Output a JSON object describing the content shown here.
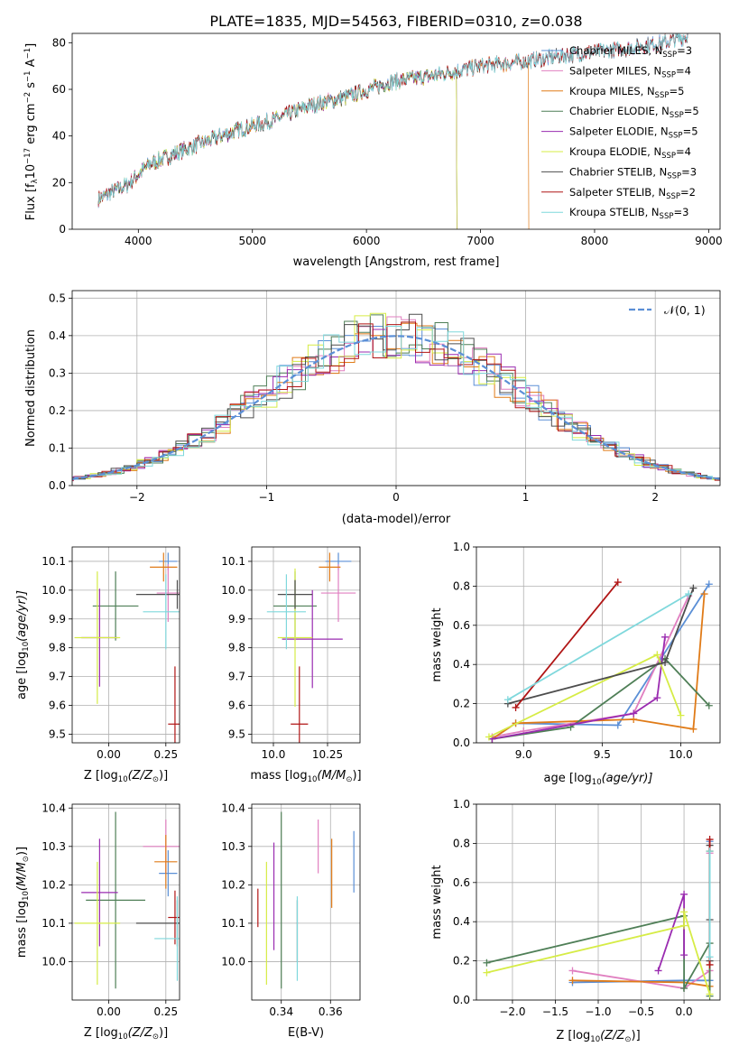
{
  "title": "PLATE=1835, MJD=54563, FIBERID=0310, z=0.038",
  "colors": {
    "chabrier_miles": "#5b8fd6",
    "salpeter_miles": "#e07fc0",
    "kroupa_miles": "#e07b18",
    "chabrier_elodie": "#4f7f57",
    "salpeter_elodie": "#9a2bb0",
    "kroupa_elodie": "#d6ec46",
    "chabrier_stelib": "#4d4d4d",
    "salpeter_stelib": "#b01515",
    "kroupa_stelib": "#7fd8dc",
    "normal_curve": "#5b8fd6",
    "grid": "#b0b0b0"
  },
  "chart_data": [
    {
      "id": "spectrum",
      "type": "line",
      "xlabel": "wavelength [Angstrom, rest frame]",
      "ylabel": "Flux [f",
      "ylabel_sub": "λ",
      "ylabel_rest": "10",
      "ylabel_exp1": "−17",
      "ylabel_mid": " erg cm",
      "ylabel_exp2": "−2",
      "ylabel_mid2": " s",
      "ylabel_exp3": "−1",
      "ylabel_mid3": " A",
      "ylabel_exp4": "−1",
      "ylabel_end": "]",
      "xlim": [
        3420,
        9100
      ],
      "ylim": [
        0,
        84
      ],
      "x_ticks": [
        4000,
        5000,
        6000,
        7000,
        8000,
        9000
      ],
      "y_ticks": [
        0,
        20,
        40,
        60,
        80
      ],
      "grid": false,
      "legend_position": "right",
      "x_range_data": [
        3650,
        8820
      ],
      "continuum": [
        [
          3650,
          13
        ],
        [
          3900,
          19
        ],
        [
          4100,
          28
        ],
        [
          4500,
          36
        ],
        [
          4900,
          43
        ],
        [
          5200,
          47
        ],
        [
          5500,
          53
        ],
        [
          5850,
          57
        ],
        [
          6200,
          63
        ],
        [
          6600,
          66
        ],
        [
          7000,
          70
        ],
        [
          7400,
          72
        ],
        [
          7800,
          75
        ],
        [
          8200,
          77
        ],
        [
          8600,
          80
        ],
        [
          8820,
          83
        ]
      ],
      "series": [
        {
          "name": "Chabrier MILES, N",
          "sub": "SSP",
          "suffix": "=3",
          "color_key": "chabrier_miles",
          "drop_at": null
        },
        {
          "name": "Salpeter MILES, N",
          "sub": "SSP",
          "suffix": "=4",
          "color_key": "salpeter_miles",
          "drop_at": null
        },
        {
          "name": "Kroupa MILES, N",
          "sub": "SSP",
          "suffix": "=5",
          "color_key": "kroupa_miles",
          "drop_at": 7420
        },
        {
          "name": "Chabrier ELODIE, N",
          "sub": "SSP",
          "suffix": "=5",
          "color_key": "chabrier_elodie",
          "drop_at": 6790
        },
        {
          "name": "Salpeter ELODIE, N",
          "sub": "SSP",
          "suffix": "=5",
          "color_key": "salpeter_elodie",
          "drop_at": 6790
        },
        {
          "name": "Kroupa ELODIE, N",
          "sub": "SSP",
          "suffix": "=4",
          "color_key": "kroupa_elodie",
          "drop_at": 6790
        },
        {
          "name": "Chabrier STELIB, N",
          "sub": "SSP",
          "suffix": "=3",
          "color_key": "chabrier_stelib",
          "drop_at": null
        },
        {
          "name": "Salpeter STELIB, N",
          "sub": "SSP",
          "suffix": "=2",
          "color_key": "salpeter_stelib",
          "drop_at": null
        },
        {
          "name": "Kroupa STELIB, N",
          "sub": "SSP",
          "suffix": "=3",
          "color_key": "kroupa_stelib",
          "drop_at": null
        }
      ]
    },
    {
      "id": "residuals",
      "type": "line",
      "xlabel": "(data-model)/error",
      "ylabel": "Normed distribution",
      "xlim": [
        -2.5,
        2.5
      ],
      "ylim": [
        0,
        0.52
      ],
      "x_ticks": [
        -2,
        -1,
        0,
        1,
        2
      ],
      "x_tick_labels": [
        "−2",
        "−1",
        "0",
        "1",
        "2"
      ],
      "y_ticks": [
        0.0,
        0.1,
        0.2,
        0.3,
        0.4,
        0.5
      ],
      "y_tick_labels": [
        "0.0",
        "0.1",
        "0.2",
        "0.3",
        "0.4",
        "0.5"
      ],
      "grid": true,
      "legend_position": "top-right",
      "normal_label": "𝒩(0, 1)",
      "normal": {
        "mean": 0,
        "sigma": 1
      }
    },
    {
      "id": "age_vs_Z",
      "type": "scatter",
      "xlabel": "Z [log",
      "xlabel_sub": "10",
      "xlabel_rest": "(Z/Z",
      "xlabel_sun": "⊙",
      "xlabel_end": ")]",
      "ylabel": "age  [log",
      "ylabel_sub": "10",
      "ylabel_rest": "(age/yr)]",
      "xlim": [
        -0.16,
        0.31
      ],
      "ylim": [
        9.47,
        10.15
      ],
      "x_ticks": [
        0.0,
        0.25
      ],
      "x_tick_labels": [
        "0.00",
        "0.25"
      ],
      "y_ticks": [
        9.5,
        9.6,
        9.7,
        9.8,
        9.9,
        10.0,
        10.1
      ],
      "y_tick_labels": [
        "9.5",
        "9.6",
        "9.7",
        "9.8",
        "9.9",
        "10.0",
        "10.1"
      ],
      "grid": true,
      "points": [
        {
          "color_key": "chabrier_miles",
          "x": 0.26,
          "xerr": 0.04,
          "y": 10.1,
          "yerr": 0.03
        },
        {
          "color_key": "salpeter_miles",
          "x": 0.26,
          "xerr": 0.05,
          "y": 9.99,
          "yerr": 0.1
        },
        {
          "color_key": "kroupa_miles",
          "x": 0.24,
          "xerr": 0.06,
          "y": 10.08,
          "yerr": 0.05
        },
        {
          "color_key": "chabrier_elodie",
          "x": 0.03,
          "xerr": 0.1,
          "y": 9.945,
          "yerr": 0.12
        },
        {
          "color_key": "salpeter_elodie",
          "x": -0.04,
          "xerr": 0.08,
          "y": 9.835,
          "yerr": 0.17
        },
        {
          "color_key": "kroupa_elodie",
          "x": -0.05,
          "xerr": 0.1,
          "y": 9.835,
          "yerr": 0.23
        },
        {
          "color_key": "chabrier_stelib",
          "x": 0.3,
          "xerr": 0.18,
          "y": 9.985,
          "yerr": 0.05
        },
        {
          "color_key": "salpeter_stelib",
          "x": 0.29,
          "xerr": 0.03,
          "y": 9.535,
          "yerr": 0.2
        },
        {
          "color_key": "kroupa_stelib",
          "x": 0.25,
          "xerr": 0.1,
          "y": 9.925,
          "yerr": 0.13
        }
      ]
    },
    {
      "id": "age_vs_mass",
      "type": "scatter",
      "xlabel": "mass [log",
      "xlabel_sub": "10",
      "xlabel_rest": "(M/M",
      "xlabel_sun": "⊙",
      "xlabel_end": ")]",
      "xlim": [
        9.9,
        10.4
      ],
      "ylim": [
        9.47,
        10.15
      ],
      "x_ticks": [
        10.0,
        10.25
      ],
      "x_tick_labels": [
        "10.0",
        "10.25"
      ],
      "y_ticks": [
        9.5,
        9.6,
        9.7,
        9.8,
        9.9,
        10.0,
        10.1
      ],
      "y_tick_labels": [
        "9.5",
        "9.6",
        "9.7",
        "9.8",
        "9.9",
        "10.0",
        "10.1"
      ],
      "grid": true,
      "points": [
        {
          "color_key": "chabrier_miles",
          "x": 10.3,
          "xerr": 0.06,
          "y": 10.1,
          "yerr": 0.03
        },
        {
          "color_key": "salpeter_miles",
          "x": 10.3,
          "xerr": 0.08,
          "y": 9.99,
          "yerr": 0.1
        },
        {
          "color_key": "kroupa_miles",
          "x": 10.26,
          "xerr": 0.05,
          "y": 10.08,
          "yerr": 0.05
        },
        {
          "color_key": "chabrier_elodie",
          "x": 10.1,
          "xerr": 0.1,
          "y": 9.945,
          "yerr": 0.12
        },
        {
          "color_key": "salpeter_elodie",
          "x": 10.18,
          "xerr": 0.14,
          "y": 9.83,
          "yerr": 0.17
        },
        {
          "color_key": "kroupa_elodie",
          "x": 10.1,
          "xerr": 0.08,
          "y": 9.835,
          "yerr": 0.24
        },
        {
          "color_key": "chabrier_stelib",
          "x": 10.1,
          "xerr": 0.08,
          "y": 9.985,
          "yerr": 0.05
        },
        {
          "color_key": "salpeter_stelib",
          "x": 10.12,
          "xerr": 0.04,
          "y": 9.535,
          "yerr": 0.2
        },
        {
          "color_key": "kroupa_stelib",
          "x": 10.06,
          "xerr": 0.09,
          "y": 9.925,
          "yerr": 0.13
        }
      ]
    },
    {
      "id": "weight_vs_age",
      "type": "line",
      "xlabel": "age  [log",
      "xlabel_sub": "10",
      "xlabel_rest": "(age/yr)]",
      "ylabel": "mass weight",
      "xlim": [
        8.7,
        10.25
      ],
      "ylim": [
        0,
        1
      ],
      "x_ticks": [
        9.0,
        9.5,
        10.0
      ],
      "x_tick_labels": [
        "9.0",
        "9.5",
        "10.0"
      ],
      "y_ticks": [
        0.0,
        0.2,
        0.4,
        0.6,
        0.8,
        1.0
      ],
      "y_tick_labels": [
        "0.0",
        "0.2",
        "0.4",
        "0.6",
        "0.8",
        "1.0"
      ],
      "grid": true,
      "series": [
        {
          "color_key": "chabrier_miles",
          "x": [
            8.8,
            8.95,
            9.6,
            10.18
          ],
          "y": [
            0.02,
            0.1,
            0.09,
            0.81
          ]
        },
        {
          "color_key": "salpeter_miles",
          "x": [
            8.8,
            9.0,
            9.7,
            10.05
          ],
          "y": [
            0.03,
            0.06,
            0.15,
            0.75
          ]
        },
        {
          "color_key": "kroupa_miles",
          "x": [
            8.8,
            8.95,
            9.7,
            10.08,
            10.15
          ],
          "y": [
            0.02,
            0.1,
            0.12,
            0.07,
            0.76
          ]
        },
        {
          "color_key": "chabrier_elodie",
          "x": [
            8.8,
            9.3,
            9.9,
            10.18
          ],
          "y": [
            0.02,
            0.08,
            0.43,
            0.19
          ]
        },
        {
          "color_key": "salpeter_elodie",
          "x": [
            8.8,
            9.7,
            9.85,
            9.9
          ],
          "y": [
            0.02,
            0.15,
            0.23,
            0.54
          ]
        },
        {
          "color_key": "kroupa_elodie",
          "x": [
            8.78,
            9.85,
            10.0
          ],
          "y": [
            0.03,
            0.45,
            0.14
          ]
        },
        {
          "color_key": "chabrier_stelib",
          "x": [
            8.9,
            9.9,
            10.08
          ],
          "y": [
            0.2,
            0.41,
            0.79
          ]
        },
        {
          "color_key": "salpeter_stelib",
          "x": [
            8.95,
            9.6
          ],
          "y": [
            0.18,
            0.82
          ]
        },
        {
          "color_key": "kroupa_stelib",
          "x": [
            8.9,
            10.05
          ],
          "y": [
            0.22,
            0.76
          ]
        }
      ]
    },
    {
      "id": "mass_vs_Z",
      "type": "scatter",
      "xlabel": "Z [log",
      "xlabel_sub": "10",
      "xlabel_rest": "(Z/Z",
      "xlabel_sun": "⊙",
      "xlabel_end": ")]",
      "ylabel": "mass [log",
      "ylabel_sub": "10",
      "ylabel_rest": "(M/M",
      "ylabel_sun": "⊙",
      "ylabel_end": ")]",
      "xlim": [
        -0.16,
        0.31
      ],
      "ylim": [
        9.9,
        10.41
      ],
      "x_ticks": [
        0.0,
        0.25
      ],
      "x_tick_labels": [
        "0.00",
        "0.25"
      ],
      "y_ticks": [
        10.0,
        10.1,
        10.2,
        10.3,
        10.4
      ],
      "y_tick_labels": [
        "10.0",
        "10.1",
        "10.2",
        "10.3",
        "10.4"
      ],
      "grid": true,
      "points": [
        {
          "color_key": "chabrier_miles",
          "x": 0.26,
          "xerr": 0.04,
          "y": 10.23,
          "yerr": 0.06
        },
        {
          "color_key": "salpeter_miles",
          "x": 0.25,
          "xerr": 0.1,
          "y": 10.3,
          "yerr": 0.07
        },
        {
          "color_key": "kroupa_miles",
          "x": 0.25,
          "xerr": 0.05,
          "y": 10.26,
          "yerr": 0.07
        },
        {
          "color_key": "chabrier_elodie",
          "x": 0.03,
          "xerr": 0.13,
          "y": 10.16,
          "yerr": 0.23
        },
        {
          "color_key": "salpeter_elodie",
          "x": -0.04,
          "xerr": 0.08,
          "y": 10.18,
          "yerr": 0.14
        },
        {
          "color_key": "kroupa_elodie",
          "x": -0.05,
          "xerr": 0.1,
          "y": 10.1,
          "yerr": 0.16
        },
        {
          "color_key": "chabrier_stelib",
          "x": 0.3,
          "xerr": 0.18,
          "y": 10.1,
          "yerr": 0.06
        },
        {
          "color_key": "salpeter_stelib",
          "x": 0.29,
          "xerr": 0.03,
          "y": 10.115,
          "yerr": 0.07
        },
        {
          "color_key": "kroupa_stelib",
          "x": 0.3,
          "xerr": 0.1,
          "y": 10.06,
          "yerr": 0.11
        }
      ]
    },
    {
      "id": "mass_vs_ebv",
      "type": "scatter",
      "xlabel": "E(B-V)",
      "xlim": [
        0.328,
        0.372
      ],
      "ylim": [
        9.9,
        10.41
      ],
      "x_ticks": [
        0.34,
        0.36
      ],
      "x_tick_labels": [
        "0.34",
        "0.36"
      ],
      "y_ticks": [
        10.0,
        10.1,
        10.2,
        10.3,
        10.4
      ],
      "y_tick_labels": [
        "10.0",
        "10.1",
        "10.2",
        "10.3",
        "10.4"
      ],
      "grid": true,
      "points": [
        {
          "color_key": "chabrier_miles",
          "x": 0.3695,
          "y": 10.26,
          "yerr": 0.08
        },
        {
          "color_key": "salpeter_miles",
          "x": 0.355,
          "y": 10.3,
          "yerr": 0.07
        },
        {
          "color_key": "kroupa_miles",
          "x": 0.3605,
          "y": 10.23,
          "yerr": 0.09
        },
        {
          "color_key": "chabrier_elodie",
          "x": 0.34,
          "y": 10.16,
          "yerr": 0.23
        },
        {
          "color_key": "salpeter_elodie",
          "x": 0.337,
          "y": 10.17,
          "yerr": 0.14
        },
        {
          "color_key": "kroupa_elodie",
          "x": 0.334,
          "y": 10.1,
          "yerr": 0.16
        },
        {
          "color_key": "chabrier_stelib",
          "x": 0.3465,
          "y": 10.08,
          "yerr": 0.08
        },
        {
          "color_key": "salpeter_stelib",
          "x": 0.3305,
          "y": 10.14,
          "yerr": 0.05
        },
        {
          "color_key": "kroupa_stelib",
          "x": 0.3465,
          "y": 10.06,
          "yerr": 0.11
        }
      ]
    },
    {
      "id": "weight_vs_Z",
      "type": "line",
      "xlabel": "Z [log",
      "xlabel_sub": "10",
      "xlabel_rest": "(Z/Z",
      "xlabel_sun": "⊙",
      "xlabel_end": ")]",
      "ylabel": "mass weight",
      "xlim": [
        -2.42,
        0.42
      ],
      "ylim": [
        0,
        1
      ],
      "x_ticks": [
        -2.0,
        -1.5,
        -1.0,
        -0.5,
        0.0
      ],
      "x_tick_labels": [
        "−2.0",
        "−1.5",
        "−1.0",
        "−0.5",
        "0.0"
      ],
      "y_ticks": [
        0.0,
        0.2,
        0.4,
        0.6,
        0.8,
        1.0
      ],
      "y_tick_labels": [
        "0.0",
        "0.2",
        "0.4",
        "0.6",
        "0.8",
        "1.0"
      ],
      "grid": true,
      "series": [
        {
          "color_key": "chabrier_miles",
          "x": [
            -1.3,
            0.0,
            0.3,
            0.3
          ],
          "y": [
            0.09,
            0.1,
            0.1,
            0.81
          ]
        },
        {
          "color_key": "salpeter_miles",
          "x": [
            -1.3,
            0.0,
            0.3,
            0.3
          ],
          "y": [
            0.15,
            0.06,
            0.15,
            0.75
          ]
        },
        {
          "color_key": "kroupa_miles",
          "x": [
            -1.3,
            0.0,
            0.3,
            0.3
          ],
          "y": [
            0.1,
            0.09,
            0.07,
            0.76
          ]
        },
        {
          "color_key": "chabrier_elodie",
          "x": [
            -2.3,
            0.0,
            0.0,
            0.3,
            0.3
          ],
          "y": [
            0.19,
            0.43,
            0.06,
            0.29,
            0.02
          ]
        },
        {
          "color_key": "salpeter_elodie",
          "x": [
            -0.3,
            0.0,
            0.0
          ],
          "y": [
            0.15,
            0.54,
            0.23
          ]
        },
        {
          "color_key": "kroupa_elodie",
          "x": [
            -2.3,
            0.0,
            0.0,
            0.3
          ],
          "y": [
            0.14,
            0.38,
            0.45,
            0.03
          ]
        },
        {
          "color_key": "chabrier_stelib",
          "x": [
            0.3,
            0.3,
            0.3
          ],
          "y": [
            0.2,
            0.41,
            0.79
          ]
        },
        {
          "color_key": "salpeter_stelib",
          "x": [
            0.3,
            0.3
          ],
          "y": [
            0.18,
            0.82
          ]
        },
        {
          "color_key": "kroupa_stelib",
          "x": [
            0.3,
            0.3
          ],
          "y": [
            0.22,
            0.76
          ]
        }
      ]
    }
  ]
}
